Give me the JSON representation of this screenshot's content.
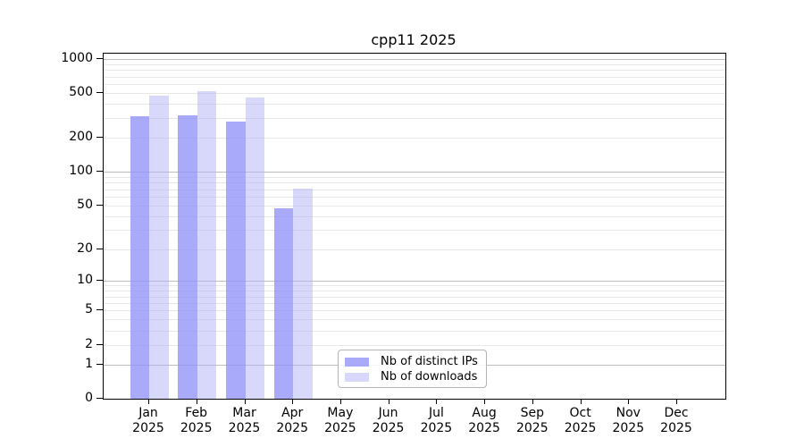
{
  "title": "cpp11 2025",
  "chart_data": {
    "type": "bar",
    "title": "cpp11 2025",
    "scale": "log1p",
    "grid": "horizontal major+minor, log decades",
    "legend_position": "lower center",
    "year_label": "2025",
    "categories": [
      "Jan",
      "Feb",
      "Mar",
      "Apr",
      "May",
      "Jun",
      "Jul",
      "Aug",
      "Sep",
      "Oct",
      "Nov",
      "Dec"
    ],
    "y_ticks": [
      0,
      1,
      2,
      5,
      10,
      20,
      50,
      100,
      200,
      500,
      1000
    ],
    "ylim": [
      0,
      1113
    ],
    "series": [
      {
        "name": "Nb of distinct IPs",
        "slug": "distinct-ips",
        "fill": "rgba(146,146,248,0.78)",
        "values": [
          310,
          315,
          280,
          47,
          null,
          null,
          null,
          null,
          null,
          null,
          null,
          null
        ]
      },
      {
        "name": "Nb of downloads",
        "slug": "downloads",
        "fill": "rgba(178,178,245,0.5)",
        "values": [
          475,
          515,
          460,
          71,
          null,
          null,
          null,
          null,
          null,
          null,
          null,
          null
        ]
      }
    ]
  }
}
